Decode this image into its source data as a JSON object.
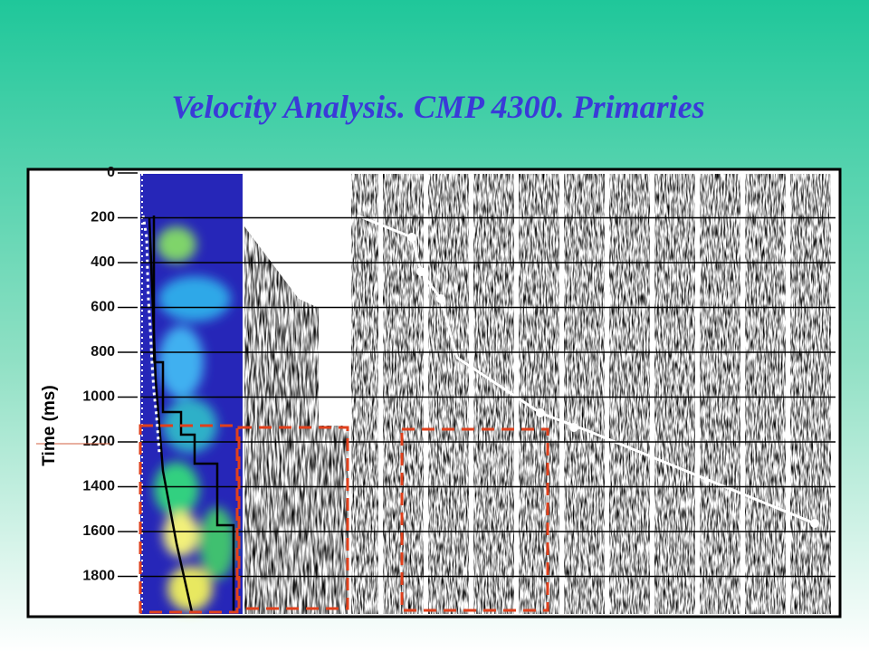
{
  "title": "Velocity Analysis. CMP 4300. Primaries",
  "axis": {
    "label": "Time (ms)",
    "ticks": [
      0,
      200,
      400,
      600,
      800,
      1000,
      1200,
      1400,
      1600,
      1800
    ]
  }
}
